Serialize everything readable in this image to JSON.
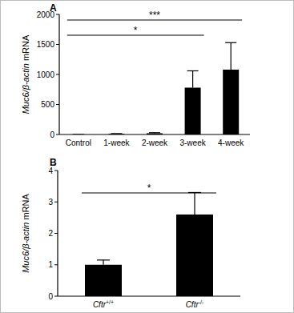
{
  "chart_data": [
    {
      "type": "bar",
      "title": "A",
      "y_label": "Muc6/β-actin mRNA",
      "categories": [
        "Control",
        "1-week",
        "2-week",
        "3-week",
        "4-week"
      ],
      "values": [
        1,
        10,
        20,
        780,
        1080
      ],
      "errors": [
        0,
        5,
        10,
        280,
        450
      ],
      "color": "#000000",
      "ylim": [
        0,
        2000
      ],
      "yticks": [
        0,
        500,
        1000,
        1500,
        2000
      ],
      "grid": false,
      "annotations": [
        {
          "text": "***",
          "from": "Control",
          "to": "4-week"
        },
        {
          "text": "*",
          "from": "Control",
          "to": "3-week"
        }
      ]
    },
    {
      "type": "bar",
      "title": "B",
      "y_label": "Muc6/β-actin mRNA",
      "categories": [
        "Cftr+/+",
        "Cftr-/-"
      ],
      "values": [
        1.0,
        2.6
      ],
      "errors": [
        0.15,
        0.7
      ],
      "color": "#000000",
      "ylim": [
        0,
        4
      ],
      "yticks": [
        0,
        1,
        2,
        3,
        4
      ],
      "grid": false,
      "annotations": [
        {
          "text": "*",
          "from": "Cftr+/+",
          "to": "Cftr-/-"
        }
      ]
    }
  ]
}
